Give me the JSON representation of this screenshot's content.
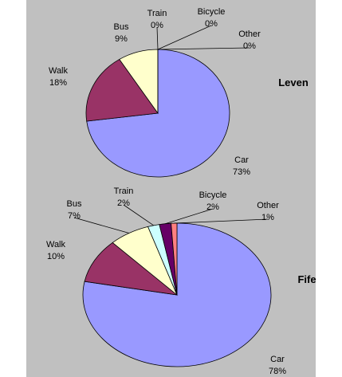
{
  "chart_data": [
    {
      "type": "pie",
      "title": "Leven",
      "categories": [
        "Car",
        "Walk",
        "Bus",
        "Train",
        "Bicycle",
        "Other"
      ],
      "values": [
        73,
        18,
        9,
        0,
        0,
        0
      ],
      "value_labels": [
        "73%",
        "18%",
        "9%",
        "0%",
        "0%",
        "0%"
      ],
      "colors": [
        "#9999ff",
        "#993366",
        "#ffffcc",
        "#ccffff",
        "#660066",
        "#ff8080"
      ]
    },
    {
      "type": "pie",
      "title": "Fife",
      "categories": [
        "Car",
        "Walk",
        "Bus",
        "Train",
        "Bicycle",
        "Other"
      ],
      "values": [
        78,
        10,
        7,
        2,
        2,
        1
      ],
      "value_labels": [
        "78%",
        "10%",
        "7%",
        "2%",
        "2%",
        "1%"
      ],
      "colors": [
        "#9999ff",
        "#993366",
        "#ffffcc",
        "#ccffff",
        "#660066",
        "#ff8080"
      ]
    }
  ]
}
